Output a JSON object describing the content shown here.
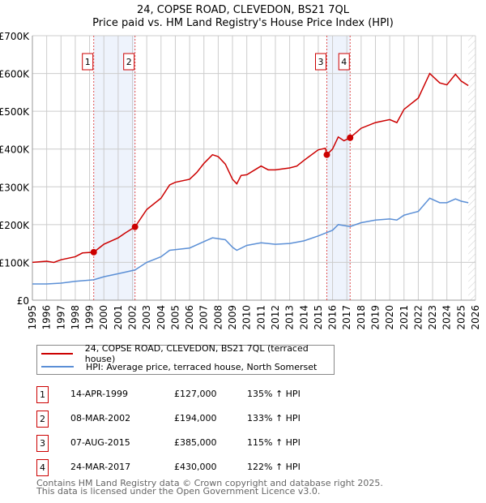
{
  "chart_data": {
    "type": "line",
    "title": "24, COPSE ROAD, CLEVEDON, BS21 7QL",
    "subtitle": "Price paid vs. HM Land Registry's House Price Index (HPI)",
    "xlim": [
      1995,
      2026
    ],
    "ylim": [
      0,
      700000
    ],
    "x_ticks": [
      "1995",
      "1996",
      "1997",
      "1998",
      "1999",
      "2000",
      "2001",
      "2002",
      "2003",
      "2004",
      "2005",
      "2006",
      "2007",
      "2008",
      "2009",
      "2010",
      "2011",
      "2012",
      "2013",
      "2014",
      "2015",
      "2016",
      "2017",
      "2018",
      "2019",
      "2020",
      "2021",
      "2022",
      "2023",
      "2024",
      "2025",
      "2026"
    ],
    "y_ticks": [
      {
        "v": 0,
        "l": "£0"
      },
      {
        "v": 100000,
        "l": "£100K"
      },
      {
        "v": 200000,
        "l": "£200K"
      },
      {
        "v": 300000,
        "l": "£300K"
      },
      {
        "v": 400000,
        "l": "£400K"
      },
      {
        "v": 500000,
        "l": "£500K"
      },
      {
        "v": 600000,
        "l": "£600K"
      },
      {
        "v": 700000,
        "l": "£700K"
      }
    ],
    "grid": true,
    "series": [
      {
        "name": "24, COPSE ROAD, CLEVEDON, BS21 7QL (terraced house)",
        "color": "#cc0000",
        "x": [
          1995,
          1996,
          1996.5,
          1997,
          1998,
          1998.5,
          1999.29,
          2000,
          2001,
          2001.5,
          2002.18,
          2003,
          2004,
          2004.6,
          2005,
          2006,
          2006.5,
          2007,
          2007.6,
          2008,
          2008.5,
          2009,
          2009.3,
          2009.6,
          2010,
          2011,
          2011.5,
          2012,
          2013,
          2013.5,
          2014,
          2015,
          2015.5,
          2015.6,
          2016,
          2016.4,
          2016.8,
          2017.23,
          2018,
          2019,
          2020,
          2020.5,
          2021,
          2022,
          2022.8,
          2023.5,
          2024,
          2024.6,
          2025,
          2025.5
        ],
        "y": [
          100000,
          103000,
          100000,
          107000,
          115000,
          125000,
          127000,
          148000,
          165000,
          178000,
          194000,
          240000,
          270000,
          305000,
          312000,
          320000,
          338000,
          362000,
          385000,
          380000,
          360000,
          320000,
          308000,
          330000,
          332000,
          355000,
          345000,
          345000,
          350000,
          355000,
          370000,
          398000,
          402000,
          385000,
          400000,
          432000,
          422000,
          430000,
          455000,
          470000,
          478000,
          470000,
          505000,
          535000,
          600000,
          575000,
          570000,
          598000,
          580000,
          568000
        ]
      },
      {
        "name": "HPI: Average price, terraced house, North Somerset",
        "color": "#5b8fd6",
        "x": [
          1995,
          1996,
          1997,
          1998,
          1999.29,
          2000,
          2001,
          2002.18,
          2003,
          2004,
          2004.6,
          2006,
          2007,
          2007.6,
          2008.5,
          2009,
          2009.3,
          2010,
          2011,
          2012,
          2013,
          2014,
          2015,
          2016,
          2016.4,
          2017.23,
          2018,
          2019,
          2020,
          2020.5,
          2021,
          2022,
          2022.8,
          2023.5,
          2024,
          2024.6,
          2025,
          2025.5
        ],
        "y": [
          43000,
          43000,
          45000,
          50000,
          54000,
          62000,
          70000,
          80000,
          100000,
          115000,
          132000,
          138000,
          155000,
          165000,
          160000,
          140000,
          132000,
          145000,
          152000,
          148000,
          150000,
          157000,
          170000,
          185000,
          200000,
          195000,
          205000,
          212000,
          215000,
          212000,
          225000,
          235000,
          270000,
          258000,
          258000,
          268000,
          262000,
          258000
        ]
      }
    ],
    "sales": [
      {
        "n": "1",
        "x": 1999.29,
        "y": 127000,
        "date": "14-APR-1999",
        "price": "£127,000",
        "hpi": "135% ↑ HPI"
      },
      {
        "n": "2",
        "x": 2002.18,
        "y": 194000,
        "date": "08-MAR-2002",
        "price": "£194,000",
        "hpi": "133% ↑ HPI"
      },
      {
        "n": "3",
        "x": 2015.6,
        "y": 385000,
        "date": "07-AUG-2015",
        "price": "£385,000",
        "hpi": "115% ↑ HPI"
      },
      {
        "n": "4",
        "x": 2017.23,
        "y": 430000,
        "date": "24-MAR-2017",
        "price": "£430,000",
        "hpi": "122% ↑ HPI"
      }
    ],
    "shaded_ranges": [
      [
        1999.29,
        2002.18
      ],
      [
        2015.6,
        2017.23
      ]
    ],
    "forecast_from": 2025.5
  },
  "footer": [
    "Contains HM Land Registry data © Crown copyright and database right 2025.",
    "This data is licensed under the Open Government Licence v3.0."
  ]
}
